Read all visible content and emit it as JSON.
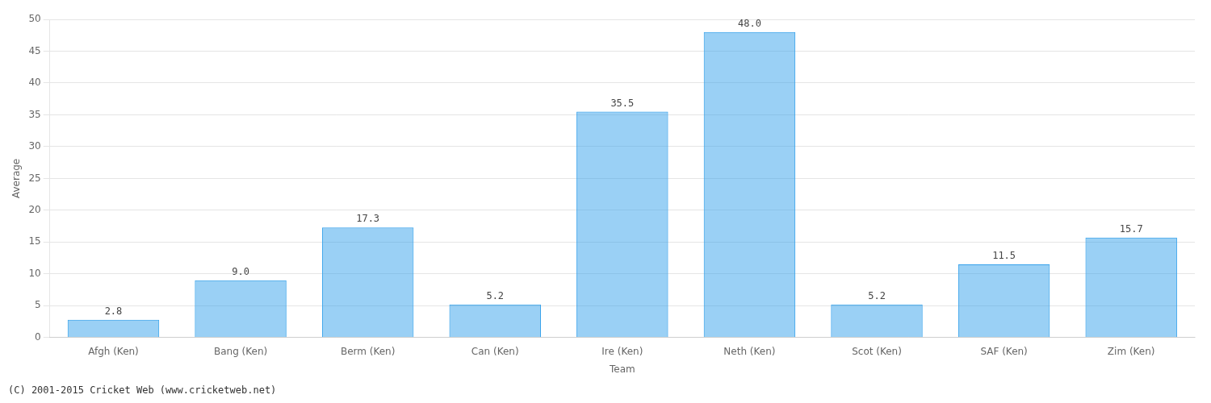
{
  "chart_data": {
    "type": "bar",
    "categories": [
      "Afgh (Ken)",
      "Bang (Ken)",
      "Berm (Ken)",
      "Can (Ken)",
      "Ire (Ken)",
      "Neth (Ken)",
      "Scot (Ken)",
      "SAF (Ken)",
      "Zim (Ken)"
    ],
    "values": [
      2.8,
      9.0,
      17.3,
      5.2,
      35.5,
      48.0,
      5.2,
      11.5,
      15.7
    ],
    "value_labels": [
      "2.8",
      "9.0",
      "17.3",
      "5.2",
      "35.5",
      "48.0",
      "5.2",
      "11.5",
      "15.7"
    ],
    "data_labels": true,
    "xlabel": "Team",
    "ylabel": "Average",
    "ylim": [
      0,
      50
    ],
    "yticks": [
      0,
      5,
      10,
      15,
      20,
      25,
      30,
      35,
      40,
      45,
      50
    ],
    "grid": true,
    "annotations": [
      "(C) 2001-2015 Cricket Web (www.cricketweb.net)"
    ]
  }
}
